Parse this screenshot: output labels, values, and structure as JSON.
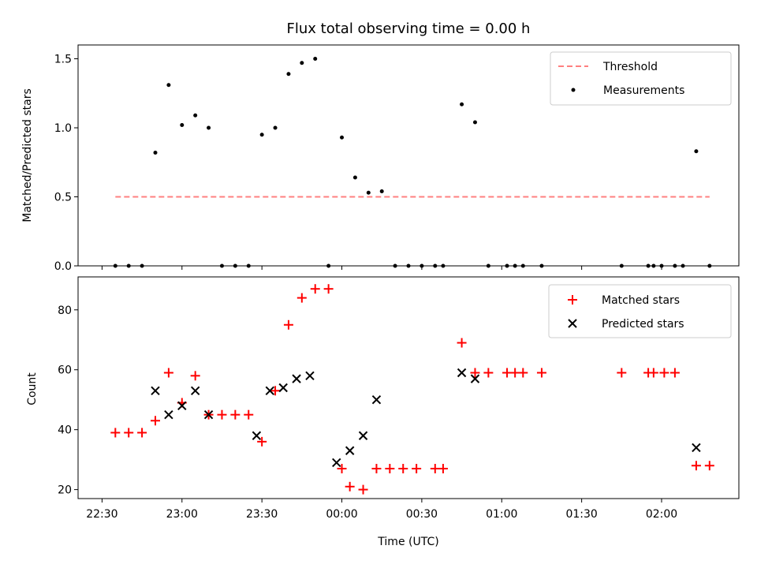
{
  "chart_data": [
    {
      "type": "scatter",
      "title": "Flux total observing time = 0.00 h",
      "xlabel": "",
      "ylabel": "Matched/Predicted stars",
      "ylim": [
        0,
        1.6
      ],
      "yticks": [
        0.0,
        0.5,
        1.0,
        1.5
      ],
      "ytick_labels": [
        "0.0",
        "0.5",
        "1.0",
        "1.5"
      ],
      "legend_position": "upper right",
      "threshold": {
        "name": "Threshold",
        "y": 0.5,
        "x_start": "22:35",
        "x_end": "02:18",
        "color": "#ff8080"
      },
      "series": [
        {
          "name": "Measurements",
          "color": "#000000",
          "marker": "dot",
          "x": [
            "22:35",
            "22:40",
            "22:45",
            "22:50",
            "22:55",
            "23:00",
            "23:05",
            "23:10",
            "23:15",
            "23:20",
            "23:25",
            "23:30",
            "23:35",
            "23:40",
            "23:45",
            "23:50",
            "23:55",
            "00:00",
            "00:05",
            "00:10",
            "00:15",
            "00:20",
            "00:25",
            "00:30",
            "00:35",
            "00:38",
            "00:45",
            "00:50",
            "00:55",
            "01:02",
            "01:05",
            "01:08",
            "01:15",
            "01:45",
            "01:55",
            "01:57",
            "02:00",
            "02:05",
            "02:08",
            "02:13",
            "02:18"
          ],
          "y": [
            0.0,
            0.0,
            0.0,
            0.82,
            1.31,
            1.02,
            1.09,
            1.0,
            0.0,
            0.0,
            0.0,
            0.95,
            1.0,
            1.39,
            1.47,
            1.5,
            0.0,
            0.93,
            0.64,
            0.53,
            0.54,
            0.0,
            0.0,
            0.0,
            0.0,
            0.0,
            1.17,
            1.04,
            0.0,
            0.0,
            0.0,
            0.0,
            0.0,
            0.0,
            0.0,
            0.0,
            0.0,
            0.0,
            0.0,
            0.83,
            0.0
          ]
        }
      ]
    },
    {
      "type": "scatter",
      "title": "",
      "xlabel": "Time (UTC)",
      "ylabel": "Count",
      "ylim": [
        17,
        91
      ],
      "yticks": [
        20,
        40,
        60,
        80
      ],
      "ytick_labels": [
        "20",
        "40",
        "60",
        "80"
      ],
      "xlim": [
        "22:21",
        "02:29"
      ],
      "xticks": [
        "22:30",
        "23:00",
        "23:30",
        "00:00",
        "00:30",
        "01:00",
        "01:30",
        "02:00"
      ],
      "xtick_labels": [
        "22:30",
        "23:00",
        "23:30",
        "00:00",
        "00:30",
        "01:00",
        "01:30",
        "02:00"
      ],
      "legend_position": "upper right",
      "series": [
        {
          "name": "Matched stars",
          "color": "#ff0000",
          "marker": "plus",
          "x": [
            "22:35",
            "22:40",
            "22:45",
            "22:50",
            "22:55",
            "23:00",
            "23:05",
            "23:10",
            "23:15",
            "23:20",
            "23:25",
            "23:30",
            "23:35",
            "23:40",
            "23:45",
            "23:50",
            "23:55",
            "00:00",
            "00:03",
            "00:08",
            "00:13",
            "00:18",
            "00:23",
            "00:28",
            "00:35",
            "00:38",
            "00:45",
            "00:50",
            "00:55",
            "01:02",
            "01:05",
            "01:08",
            "01:15",
            "01:45",
            "01:55",
            "01:57",
            "02:01",
            "02:05",
            "02:13",
            "02:18"
          ],
          "y": [
            39,
            39,
            39,
            43,
            59,
            49,
            58,
            45,
            45,
            45,
            45,
            36,
            53,
            75,
            84,
            87,
            87,
            27,
            21,
            20,
            27,
            27,
            27,
            27,
            27,
            27,
            69,
            59,
            59,
            59,
            59,
            59,
            59,
            59,
            59,
            59,
            59,
            59,
            28,
            28
          ]
        },
        {
          "name": "Predicted stars",
          "color": "#000000",
          "marker": "x",
          "x": [
            "22:50",
            "22:55",
            "23:00",
            "23:05",
            "23:10",
            "23:28",
            "23:33",
            "23:38",
            "23:43",
            "23:48",
            "23:58",
            "00:03",
            "00:08",
            "00:13",
            "00:45",
            "00:50",
            "02:13"
          ],
          "y": [
            53,
            45,
            48,
            53,
            45,
            38,
            53,
            54,
            57,
            58,
            29,
            33,
            38,
            50,
            59,
            57,
            34
          ]
        }
      ]
    }
  ]
}
